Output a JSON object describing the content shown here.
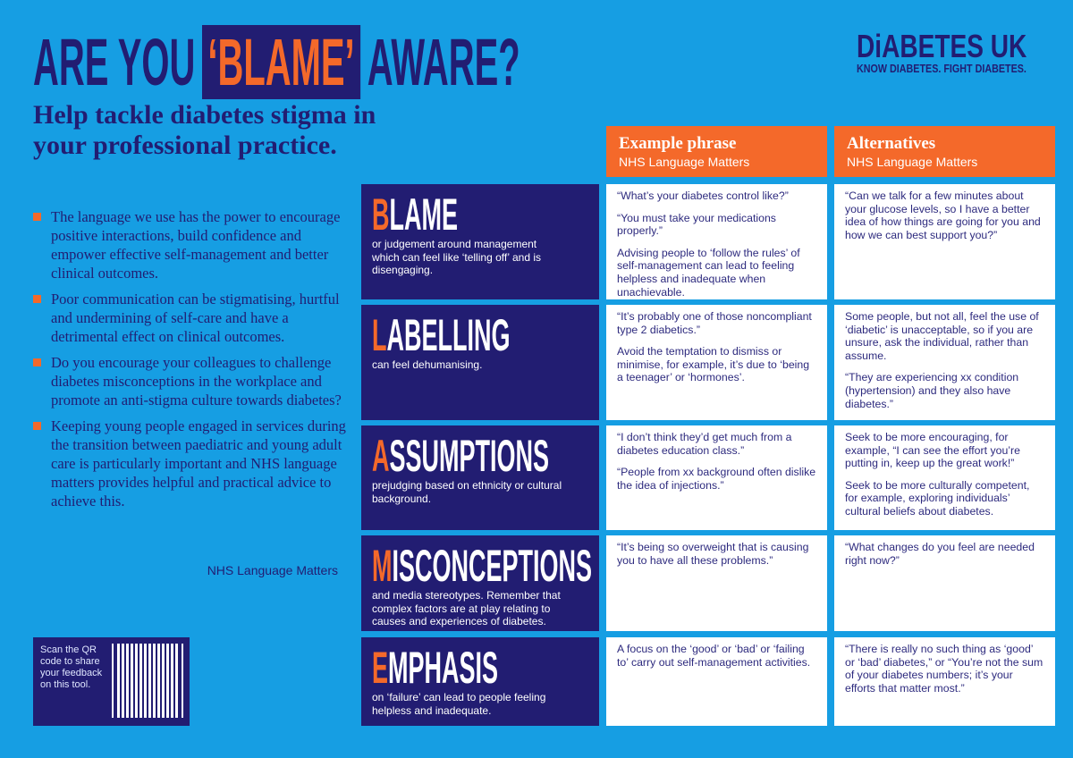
{
  "header": {
    "title_before": "ARE YOU",
    "title_highlight": "‘BLAME’",
    "title_after": "AWARE?",
    "subtitle": "Help tackle diabetes stigma in your professional practice."
  },
  "logo": {
    "name": "DiABETES UK",
    "tagline": "KNOW DIABETES. FIGHT DIABETES."
  },
  "bullets": [
    "The language we use has the power to encourage positive interactions, build confidence and empower effective self-management and better clinical outcomes.",
    "Poor communication can be stigmatising, hurtful and undermining of self-care and have a detrimental effect on clinical outcomes.",
    "Do you encourage your colleagues to challenge diabetes misconceptions in the workplace and promote an anti-stigma culture towards diabetes?",
    "Keeping young people engaged in services during the transition between paediatric and young adult care is particularly important and NHS language matters provides helpful and practical advice to achieve this."
  ],
  "bullets_source": "NHS Language Matters",
  "qr": {
    "text": "Scan the QR code to share your feedback on this tool."
  },
  "table": {
    "columns": [
      {
        "title": "Example phrase",
        "source": "NHS Language Matters"
      },
      {
        "title": "Alternatives",
        "source": "NHS Language Matters"
      }
    ],
    "rows": [
      {
        "initial": "B",
        "rest": "LAME",
        "description": "or judgement around management which can feel like ‘telling off’ and is disengaging.",
        "examples": [
          "“What’s your diabetes control like?”",
          "“You must take your medications properly.”",
          "Advising people to ‘follow the rules’ of self-management can lead to feeling helpless and inadequate when unachievable."
        ],
        "alternatives": [
          "“Can we talk for a few minutes about your glucose levels, so I have a better idea of how things are going for you and how we can best support you?”"
        ]
      },
      {
        "initial": "L",
        "rest": "ABELLING",
        "description": "can feel dehumanising.",
        "examples": [
          "“It’s probably one of those noncompliant type 2 diabetics.”",
          "Avoid the temptation to dismiss or minimise, for example, it’s due to ‘being a teenager’ or ‘hormones’."
        ],
        "alternatives": [
          "Some people, but not all, feel the use of ‘diabetic’ is unacceptable, so if you are unsure, ask the individual, rather than assume.",
          "“They are experiencing xx condition (hypertension) and they also have diabetes.”"
        ]
      },
      {
        "initial": "A",
        "rest": "SSUMPTIONS",
        "description": "prejudging based on ethnicity or cultural background.",
        "examples": [
          "“I don’t think they’d get much from a diabetes education class.”",
          "“People from xx background often dislike the idea of injections.”"
        ],
        "alternatives": [
          "Seek to be more encouraging, for example, “I can see the effort you’re putting in, keep up the great work!”",
          "Seek to be more culturally competent, for example, exploring individuals’ cultural beliefs about diabetes."
        ]
      },
      {
        "initial": "M",
        "rest": "ISCONCEPTIONS",
        "description": "and media stereotypes. Remember that complex factors are at play relating to causes and experiences of diabetes.",
        "examples": [
          "“It’s being so overweight that is causing you to have all these problems.”"
        ],
        "alternatives": [
          "“What changes do you feel are needed right now?”"
        ]
      },
      {
        "initial": "E",
        "rest": "MPHASIS",
        "description": "on ‘failure’ can lead to people feeling helpless and inadequate.",
        "examples": [
          "A focus on the ‘good’ or ‘bad’ or ‘failing to’ carry out self-management activities."
        ],
        "alternatives": [
          "“There is really no such thing as ‘good’ or ‘bad’ diabetes,” or “You’re not the sum of your diabetes numbers; it’s your efforts that matter most.”"
        ]
      }
    ]
  }
}
